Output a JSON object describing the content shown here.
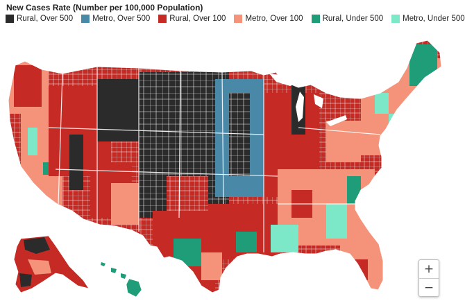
{
  "legend": {
    "title": "New Cases Rate (Number per 100,000 Population)",
    "items": [
      {
        "label": "Rural, Over 500",
        "color": "#2b2b2b"
      },
      {
        "label": "Metro, Over 500",
        "color": "#4a88a8"
      },
      {
        "label": "Rural, Over 100",
        "color": "#c52a25"
      },
      {
        "label": "Metro, Over 100",
        "color": "#f4927a"
      },
      {
        "label": "Rural, Under 500",
        "color": "#1f9c78"
      },
      {
        "label": "Metro, Under 500",
        "color": "#7de8c8"
      }
    ]
  },
  "controls": {
    "zoom_in": "+",
    "zoom_out": "−"
  }
}
